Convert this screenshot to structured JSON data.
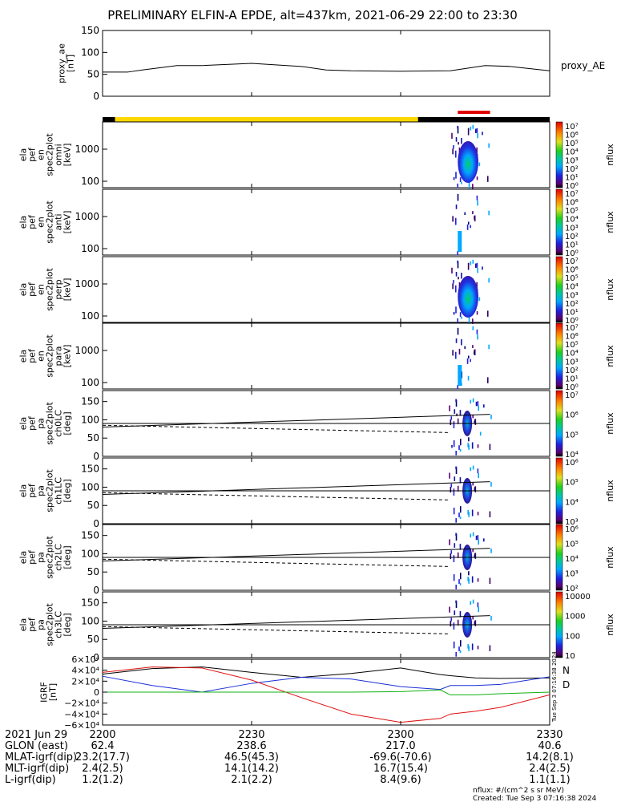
{
  "title": "PRELIMINARY ELFIN-A EPDE, alt=437km, 2021-06-29 22:00 to 23:30",
  "time_axis": {
    "row_labels": [
      "2021 Jun 29",
      "GLON (east)",
      "MLAT-igrf(dip)",
      "MLT-igrf(dip)",
      "L-igrf(dip)"
    ],
    "ticks": [
      "2200",
      "2230",
      "2300",
      "2330"
    ],
    "glon": [
      "62.4",
      "238.6",
      "217.0",
      "40.6"
    ],
    "mlat": [
      "23.2(17.7)",
      "46.5(45.3)",
      "-69.6(-70.6)",
      "14.2(8.1)"
    ],
    "mlt": [
      "2.4(2.5)",
      "14.1(14.2)",
      "16.7(15.4)",
      "2.4(2.5)"
    ],
    "lval": [
      "1.2(1.2)",
      "2.1(2.2)",
      "8.4(9.6)",
      "1.1(1.1)"
    ]
  },
  "footer": {
    "units": "nflux: #/(cm^2 s sr MeV)",
    "created": "Created: Tue Sep  3 07:16:38 2024",
    "side_stamp": "Tue Sep  3 07:16:38 2024"
  },
  "panels": {
    "ae": {
      "ylabel": [
        "proxy_ae",
        "[nT]"
      ],
      "ticks": [
        "0",
        "50",
        "100",
        "150"
      ],
      "legend": "proxy_AE"
    },
    "p1": {
      "ylabel": [
        "ela",
        "pef",
        "en",
        "spec2plot",
        "omni",
        "[keV]"
      ],
      "ticks": [
        "100",
        "1000"
      ],
      "cbar_label": "nflux"
    },
    "p2": {
      "ylabel": [
        "ela",
        "pef",
        "en",
        "spec2plot",
        "anti",
        "[keV]"
      ],
      "ticks": [
        "100",
        "1000"
      ],
      "cbar_label": "nflux"
    },
    "p3": {
      "ylabel": [
        "ela",
        "pef",
        "en",
        "spec2plot",
        "perp",
        "[keV]"
      ],
      "ticks": [
        "100",
        "1000"
      ],
      "cbar_label": "nflux"
    },
    "p4": {
      "ylabel": [
        "ela",
        "pef",
        "en",
        "spec2plot",
        "para",
        "[keV]"
      ],
      "ticks": [
        "100",
        "1000"
      ],
      "cbar_label": "nflux"
    },
    "p5": {
      "ylabel": [
        "ela",
        "pef",
        "pa",
        "spec2plot",
        "ch0LC",
        "[deg]"
      ],
      "ticks": [
        "0",
        "50",
        "100",
        "150"
      ],
      "cbar_label": "nflux"
    },
    "p6": {
      "ylabel": [
        "ela",
        "pef",
        "pa",
        "spec2plot",
        "ch1LC",
        "[deg]"
      ],
      "ticks": [
        "0",
        "50",
        "100",
        "150"
      ],
      "cbar_label": "nflux"
    },
    "p7": {
      "ylabel": [
        "ela",
        "pef",
        "pa",
        "spec2plot",
        "ch2LC",
        "[deg]"
      ],
      "ticks": [
        "0",
        "50",
        "100",
        "150"
      ],
      "cbar_label": "nflux"
    },
    "p8": {
      "ylabel": [
        "ela",
        "pef",
        "pa",
        "spec2plot",
        "ch3LC",
        "[deg]"
      ],
      "ticks": [
        "0",
        "50",
        "100",
        "150"
      ],
      "cbar_label": "nflux"
    },
    "igrf": {
      "ylabel": [
        "IGRF",
        "[nT]"
      ],
      "legend_N": "N",
      "legend_D": "D"
    }
  },
  "colors": {
    "ae_line": "#000000",
    "bar_black": "#000000",
    "bar_yellow": "#ffd800",
    "bar_red": "#e00000",
    "igrf_black": "#000000",
    "igrf_blue": "#1a2fd8",
    "igrf_red": "#e01010",
    "igrf_green": "#10b010",
    "legend_N": "#1a2fd8",
    "legend_D": "#e01010"
  },
  "colorbars": {
    "en": [
      "10⁷",
      "10⁶",
      "10⁵",
      "10⁴",
      "10³",
      "10²",
      "10¹",
      "10⁰"
    ],
    "pa0": [
      "10⁷",
      "10⁶",
      "10⁵",
      "10⁴"
    ],
    "pa1": [
      "10⁶",
      "10⁵",
      "10⁴",
      "10³"
    ],
    "pa2": [
      "10⁶",
      "10⁵",
      "10⁴",
      "10³",
      "10²"
    ],
    "pa3": [
      "10000",
      "1000",
      "100",
      "10"
    ]
  },
  "chart_data": [
    {
      "type": "line",
      "panel": "proxy_ae",
      "x_minutes": [
        0,
        5,
        8,
        15,
        20,
        30,
        40,
        45,
        50,
        60,
        70,
        77,
        82,
        90
      ],
      "values": [
        55,
        55,
        60,
        70,
        70,
        75,
        68,
        60,
        58,
        57,
        58,
        70,
        68,
        58
      ],
      "ylim": [
        0,
        150
      ],
      "xlim": [
        0,
        90
      ],
      "series_label": "proxy_AE"
    },
    {
      "type": "bar",
      "panel": "region_bar",
      "segments": [
        {
          "start_min": 0,
          "end_min": 2.5,
          "color": "black"
        },
        {
          "start_min": 2.5,
          "end_min": 63.5,
          "color": "yellow"
        },
        {
          "start_min": 63.5,
          "end_min": 90,
          "color": "black"
        },
        {
          "start_min": 71.5,
          "end_min": 78,
          "color": "red"
        }
      ]
    },
    {
      "type": "line",
      "panel": "igrf",
      "ylim": [
        -60000,
        60000
      ],
      "yticks": [
        "6×10⁴",
        "4×10⁴",
        "2×10⁴",
        "0",
        "−2×10⁴",
        "−4×10⁴",
        "−6×10⁴"
      ],
      "x_minutes": [
        0,
        10,
        20,
        30,
        40,
        50,
        60,
        68,
        70,
        75,
        80,
        90
      ],
      "series": [
        {
          "color": "black",
          "values": [
            33000,
            43000,
            46000,
            36000,
            27000,
            34000,
            44000,
            32000,
            30000,
            26000,
            25000,
            26000
          ]
        },
        {
          "color": "blue",
          "values": [
            29000,
            12000,
            0,
            16000,
            27000,
            24000,
            10000,
            5000,
            12000,
            12000,
            14000,
            28000
          ]
        },
        {
          "color": "red",
          "values": [
            36000,
            46000,
            44000,
            22000,
            -10000,
            -40000,
            -55000,
            -48000,
            -40000,
            -35000,
            -28000,
            -5000
          ]
        },
        {
          "color": "green",
          "values": [
            0,
            0,
            0,
            0,
            0,
            0,
            1000,
            4000,
            -5000,
            -5000,
            -3000,
            0
          ]
        }
      ]
    },
    {
      "type": "heatmap",
      "panel": "energy_spectrograms",
      "ylim_keV": [
        63,
        7000
      ],
      "active_window_min": [
        70,
        78
      ],
      "peak_window_min": [
        71.5,
        75
      ],
      "energy_peak_keV": [
        200,
        2500
      ],
      "colorbar_range": "10^0 - 10^7 nflux"
    },
    {
      "type": "heatmap",
      "panel": "pitch_angle_spectrograms",
      "ylim_deg": [
        0,
        180
      ],
      "active_window_min": [
        70,
        78
      ],
      "loss_cone_lines": {
        "solid_deg_start": 80,
        "solid_deg_end": 115,
        "dashed_deg_start": 85,
        "dashed_deg_end": 65,
        "horizontal_deg": 90
      }
    }
  ]
}
